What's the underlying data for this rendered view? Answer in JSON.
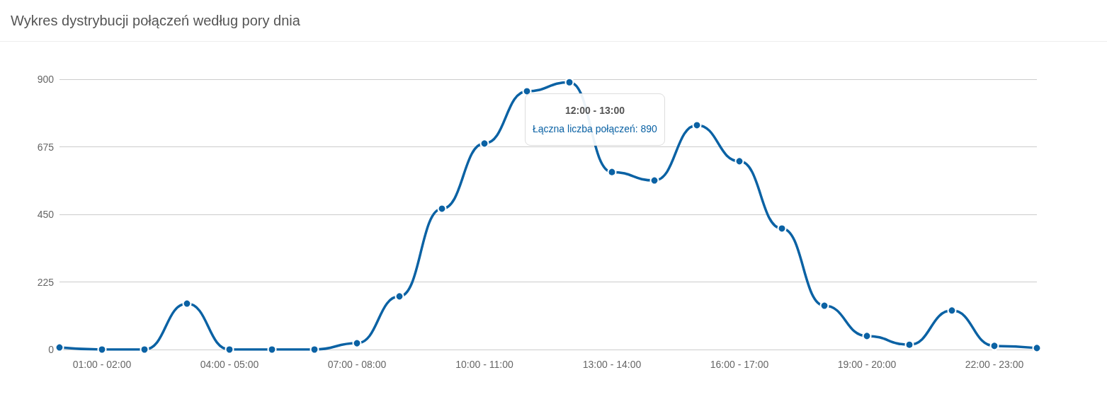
{
  "chart_data": {
    "type": "line",
    "title": "Wykres dystrybucji połączeń według pory dnia",
    "categories": [
      null,
      "01:00 - 02:00",
      null,
      null,
      "04:00 - 05:00",
      null,
      null,
      "07:00 - 08:00",
      null,
      null,
      "10:00 - 11:00",
      null,
      null,
      "13:00 - 14:00",
      null,
      null,
      "16:00 - 17:00",
      null,
      null,
      "19:00 - 20:00",
      null,
      null,
      "22:00 - 23:00",
      null
    ],
    "series": [
      {
        "color": "#0b62a4",
        "values": [
          7,
          0,
          0,
          153,
          0,
          0,
          0,
          21,
          177,
          469,
          686,
          860,
          890,
          591,
          563,
          747,
          627,
          403,
          146,
          45,
          16,
          130,
          12,
          5
        ]
      }
    ],
    "ylim": [
      0,
      900
    ],
    "yticks": [
      0,
      225,
      450,
      675,
      900
    ],
    "grid": "y",
    "marker": "circle",
    "line_style": "solid",
    "annotations": [
      "12:00 - 13:00",
      "Łączna liczba połączeń: 890"
    ]
  }
}
